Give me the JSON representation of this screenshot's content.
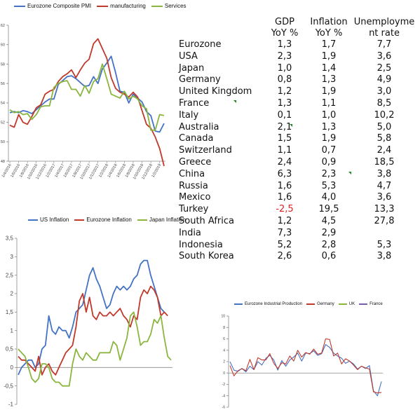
{
  "charts": {
    "pmi": {
      "legend": [
        "Eurozone Composite PMI",
        "manufacturing",
        "Services"
      ],
      "colors": [
        "#4472c4",
        "#c0392b",
        "#8ab63f"
      ],
      "y_ticks": [
        "48",
        "50",
        "52",
        "54",
        "56",
        "58",
        "60",
        "62"
      ],
      "x_ticks": [
        "1/4/2016",
        "1/6/2016",
        "1/8/2016",
        "1/10/2016",
        "1/12/2016",
        "1/2/2017",
        "1/4/2017",
        "1/6/2017",
        "1/8/2017",
        "1/10/2017",
        "1/12/2017",
        "1/2/2018",
        "1/4/2018",
        "1/6/2018",
        "1/8/2018",
        "1/10/2018",
        "1/12/2018",
        "1/2/2019"
      ]
    },
    "inflation": {
      "legend": [
        "US Inflation",
        "Eurozone Inflation",
        "Japan Inflation"
      ],
      "colors": [
        "#4472c4",
        "#c0392b",
        "#8ab63f"
      ],
      "y_ticks": [
        "-1",
        "-0,5",
        "0",
        "0,5",
        "1",
        "1,5",
        "2",
        "2,5",
        "3",
        "3,5"
      ]
    },
    "industrial": {
      "legend": [
        "Eurozone Industrial Production",
        "Germany",
        "UK",
        "France"
      ],
      "colors": [
        "#4472c4",
        "#c0392b",
        "#8ab63f",
        "#7a5fa8"
      ],
      "y_ticks": [
        "-6",
        "-4",
        "-2",
        "0",
        "2",
        "4",
        "6",
        "8",
        "10"
      ]
    }
  },
  "chart_data": [
    {
      "type": "line",
      "title": "",
      "x": [
        "1/4/2016",
        "",
        "1/6/2016",
        "",
        "1/8/2016",
        "",
        "1/10/2016",
        "",
        "1/12/2016",
        "",
        "1/2/2017",
        "",
        "1/4/2017",
        "",
        "1/6/2017",
        "",
        "1/8/2017",
        "",
        "1/10/2017",
        "",
        "1/12/2017",
        "",
        "1/2/2018",
        "",
        "1/4/2018",
        "",
        "1/6/2018",
        "",
        "1/8/2018",
        "",
        "1/10/2018",
        "",
        "1/12/2018",
        "",
        "1/2/2019",
        ""
      ],
      "ylim": [
        48,
        62
      ],
      "series": [
        {
          "name": "Eurozone Composite PMI",
          "values": [
            53.0,
            53.1,
            53.0,
            53.2,
            53.1,
            52.9,
            53.3,
            53.7,
            54.1,
            54.4,
            54.4,
            55.9,
            56.3,
            56.7,
            56.8,
            56.5,
            56.1,
            55.7,
            55.8,
            56.7,
            56.0,
            57.5,
            58.1,
            58.8,
            57.1,
            55.2,
            55.1,
            54.0,
            54.9,
            54.5,
            54.1,
            53.1,
            52.7,
            51.1,
            51.0,
            51.9
          ]
        },
        {
          "name": "manufacturing",
          "values": [
            51.7,
            51.5,
            52.8,
            52.0,
            51.8,
            52.6,
            53.5,
            53.8,
            54.9,
            55.2,
            55.4,
            56.2,
            56.7,
            57.0,
            57.4,
            56.6,
            57.4,
            58.1,
            58.5,
            60.1,
            60.6,
            59.6,
            58.6,
            56.6,
            55.5,
            55.1,
            54.9,
            54.6,
            55.1,
            54.6,
            53.2,
            51.8,
            51.4,
            50.5,
            49.3,
            47.5
          ]
        },
        {
          "name": "Services",
          "values": [
            53.3,
            53.0,
            53.1,
            52.8,
            52.9,
            52.3,
            52.8,
            53.6,
            53.7,
            53.7,
            55.6,
            56.0,
            56.2,
            56.3,
            55.4,
            55.4,
            54.7,
            55.8,
            55.0,
            56.2,
            56.5,
            58.0,
            56.5,
            54.9,
            54.7,
            54.5,
            55.2,
            54.4,
            54.7,
            54.4,
            53.7,
            53.4,
            51.2,
            51.2,
            52.8,
            52.7
          ]
        }
      ]
    },
    {
      "type": "line",
      "title": "",
      "ylim": [
        -1,
        3.5
      ],
      "series": [
        {
          "name": "US Inflation",
          "values": [
            -0.2,
            0.0,
            0.1,
            0.2,
            0.2,
            0.0,
            0.1,
            0.5,
            0.6,
            1.4,
            1.0,
            0.9,
            1.1,
            1.0,
            1.0,
            0.8,
            1.1,
            1.5,
            1.6,
            1.7,
            2.1,
            2.5,
            2.7,
            2.4,
            2.2,
            1.9,
            1.6,
            1.7,
            2.0,
            2.2,
            2.1,
            2.2,
            2.1,
            2.2,
            2.4,
            2.5,
            2.8,
            2.9,
            2.9,
            2.5,
            2.2,
            1.9,
            1.6,
            1.5
          ]
        },
        {
          "name": "Eurozone Inflation",
          "values": [
            0.3,
            0.2,
            0.2,
            0.1,
            0.0,
            -0.1,
            0.3,
            -0.2,
            0.0,
            0.1,
            -0.1,
            -0.2,
            0.0,
            0.2,
            0.4,
            0.5,
            0.6,
            1.1,
            1.8,
            2.0,
            1.5,
            1.9,
            1.4,
            1.3,
            1.5,
            1.4,
            1.4,
            1.5,
            1.4,
            1.5,
            1.6,
            1.4,
            1.3,
            1.1,
            1.4,
            1.3,
            1.9,
            2.1,
            2.0,
            2.2,
            2.1,
            1.9,
            1.4,
            1.5,
            1.4
          ]
        },
        {
          "name": "Japan Inflation",
          "values": [
            0.5,
            0.4,
            0.3,
            0.0,
            -0.3,
            -0.4,
            -0.3,
            0.1,
            0.1,
            0.0,
            -0.3,
            -0.4,
            -0.4,
            -0.5,
            -0.5,
            -0.5,
            0.1,
            0.5,
            0.3,
            0.2,
            0.4,
            0.3,
            0.2,
            0.2,
            0.4,
            0.4,
            0.4,
            0.4,
            0.7,
            0.6,
            0.2,
            0.5,
            0.8,
            1.4,
            1.5,
            1.1,
            0.6,
            0.7,
            0.7,
            0.9,
            1.3,
            1.2,
            1.4,
            0.8,
            0.3,
            0.2
          ]
        }
      ]
    },
    {
      "type": "line",
      "title": "",
      "ylim": [
        -6,
        10
      ],
      "series": [
        {
          "name": "Eurozone Industrial Production",
          "values": [
            2.0,
            0.5,
            0.3,
            0.8,
            0.2,
            1.2,
            0.6,
            2.0,
            1.4,
            2.6,
            3.1,
            2.3,
            0.5,
            2.2,
            1.2,
            2.3,
            2.8,
            3.5,
            2.1,
            3.5,
            3.4,
            3.9,
            3.1,
            3.4,
            5.0,
            4.5,
            3.5,
            3.0,
            2.6,
            1.7,
            2.1,
            1.6,
            0.7,
            1.2,
            0.8,
            1.3,
            -3.1,
            -4.0,
            -1.5
          ]
        },
        {
          "name": "Germany",
          "values": [
            1.3,
            -0.5,
            0.4,
            0.8,
            0.4,
            2.4,
            0.6,
            2.7,
            2.3,
            2.3,
            3.4,
            1.7,
            0.8,
            1.8,
            1.6,
            3.0,
            2.1,
            4.0,
            2.8,
            3.6,
            3.3,
            4.2,
            3.3,
            3.5,
            6.0,
            5.9,
            3.0,
            3.5,
            1.6,
            2.5,
            2.1,
            1.4,
            0.6,
            1.2,
            0.9,
            0.7,
            -3.3,
            -3.5,
            -3.4
          ]
        },
        {
          "name": "UK",
          "values": []
        },
        {
          "name": "France",
          "values": []
        }
      ]
    }
  ],
  "table": {
    "headers": {
      "gdp": [
        "GDP",
        "YoY %"
      ],
      "inflation": [
        "Inflation",
        "YoY %"
      ],
      "unemployment": [
        "Unemployme",
        "nt rate"
      ]
    },
    "rows": [
      {
        "country": "Eurozone",
        "gdp": "1,3",
        "inflation": "1,7",
        "unemployment": "7,7"
      },
      {
        "country": "USA",
        "gdp": "2,3",
        "inflation": "1,9",
        "unemployment": "3,6"
      },
      {
        "country": "Japan",
        "gdp": "1,0",
        "inflation": "1,4",
        "unemployment": "2,5"
      },
      {
        "country": "Germany",
        "gdp": "0,8",
        "inflation": "1,3",
        "unemployment": "4,9"
      },
      {
        "country": "United Kingdom",
        "gdp": "1,2",
        "inflation": "1,9",
        "unemployment": "3,0"
      },
      {
        "country": "France",
        "gdp": "1,3",
        "inflation": "1,1",
        "unemployment": "8,5"
      },
      {
        "country": "Italy",
        "gdp": "0,1",
        "inflation": "1,0",
        "unemployment": "10,2"
      },
      {
        "country": "Australia",
        "gdp": "2,1",
        "inflation": "1,3",
        "unemployment": "5,0"
      },
      {
        "country": "Canada",
        "gdp": "1,5",
        "inflation": "1,9",
        "unemployment": "5,8"
      },
      {
        "country": "Switzerland",
        "gdp": "1,1",
        "inflation": "0,7",
        "unemployment": "2,4"
      },
      {
        "country": "Greece",
        "gdp": "2,4",
        "inflation": "0,9",
        "unemployment": "18,5"
      },
      {
        "country": "China",
        "gdp": "6,3",
        "inflation": "2,3",
        "unemployment": "3,8"
      },
      {
        "country": "Russia",
        "gdp": "1,6",
        "inflation": "5,3",
        "unemployment": "4,7"
      },
      {
        "country": "Mexico",
        "gdp": "1,6",
        "inflation": "4,0",
        "unemployment": "3,6"
      },
      {
        "country": "Turkey",
        "gdp": "-2,5",
        "inflation": "19,5",
        "unemployment": "13,3"
      },
      {
        "country": "South Africa",
        "gdp": "1,2",
        "inflation": "4,5",
        "unemployment": "27,8"
      },
      {
        "country": "India",
        "gdp": "7,3",
        "inflation": "2,9",
        "unemployment": ""
      },
      {
        "country": "Indonesia",
        "gdp": "5,2",
        "inflation": "2,8",
        "unemployment": "5,3"
      },
      {
        "country": "South Korea",
        "gdp": "2,6",
        "inflation": "0,6",
        "unemployment": "3,8"
      }
    ],
    "negative_color": "#e02020",
    "flag_color": "#1a8a1a"
  }
}
